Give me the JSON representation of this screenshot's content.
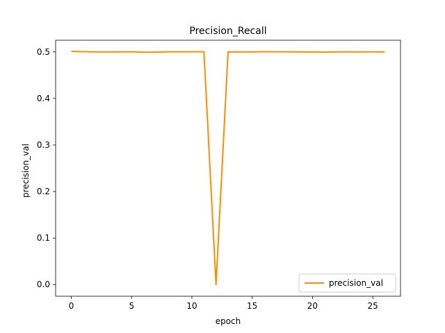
{
  "chart_data": {
    "type": "line",
    "title": "Precision_Recall",
    "xlabel": "epoch",
    "ylabel": "precision_val",
    "xlim": [
      -1.3,
      27.3
    ],
    "ylim": [
      -0.025,
      0.525
    ],
    "xticks": [
      0,
      5,
      10,
      15,
      20,
      25
    ],
    "yticks": [
      0.0,
      0.1,
      0.2,
      0.3,
      0.4,
      0.5
    ],
    "xtick_labels": [
      "0",
      "5",
      "10",
      "15",
      "20",
      "25"
    ],
    "ytick_labels": [
      "0.0",
      "0.1",
      "0.2",
      "0.3",
      "0.4",
      "0.5"
    ],
    "grid": false,
    "legend_position": "lower-right",
    "series": [
      {
        "name": "precision_val",
        "color": "#ff8c00",
        "x": [
          0,
          1,
          2,
          3,
          4,
          5,
          6,
          7,
          8,
          9,
          10,
          11,
          12,
          13,
          14,
          15,
          16,
          17,
          18,
          19,
          20,
          21,
          22,
          23,
          24,
          25,
          26
        ],
        "y": [
          0.501,
          0.5005,
          0.4998,
          0.4999,
          0.4999,
          0.5003,
          0.4993,
          0.4994,
          0.5,
          0.5,
          0.5002,
          0.5002,
          0.0,
          0.5,
          0.4999,
          0.4998,
          0.5004,
          0.5,
          0.5,
          0.4999,
          0.4997,
          0.4995,
          0.4998,
          0.5,
          0.4998,
          0.5,
          0.4999
        ]
      }
    ]
  }
}
